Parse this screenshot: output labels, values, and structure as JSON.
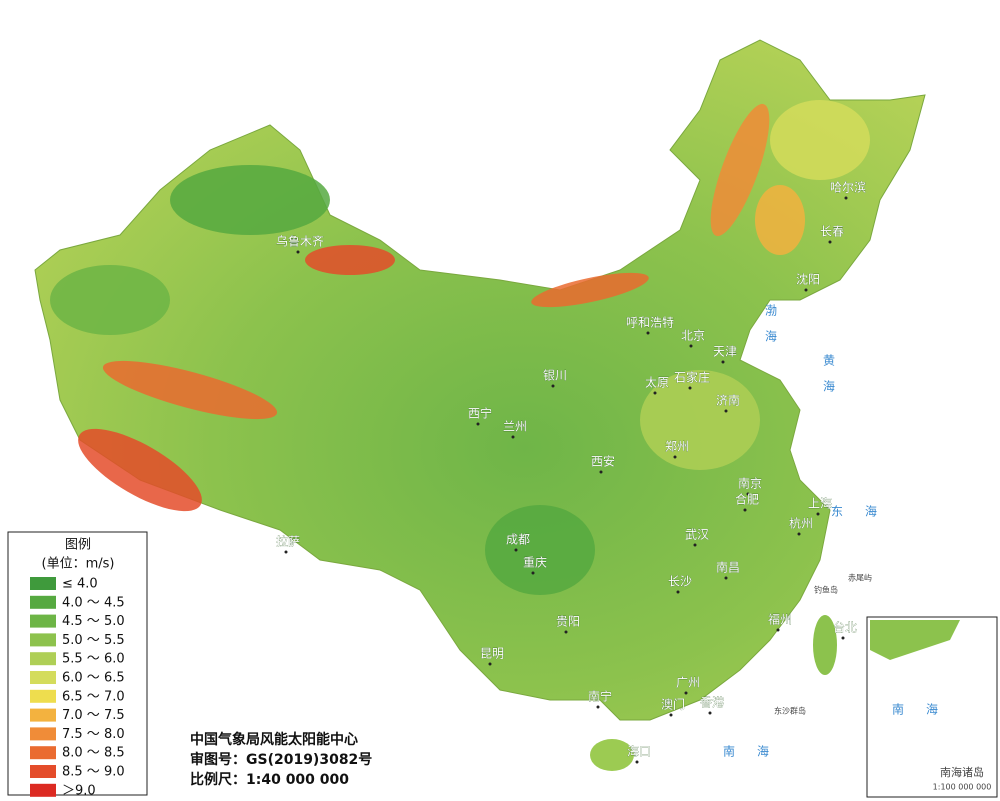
{
  "map": {
    "cities": [
      "乌鲁木齐",
      "哈尔滨",
      "长春",
      "沈阳",
      "呼和浩特",
      "北京",
      "天津",
      "石家庄",
      "太原",
      "济南",
      "银川",
      "西宁",
      "兰州",
      "西安",
      "郑州",
      "南京",
      "合肥",
      "上海",
      "杭州",
      "拉萨",
      "成都",
      "重庆",
      "武汉",
      "长沙",
      "南昌",
      "贵阳",
      "福州",
      "台北",
      "昆明",
      "南宁",
      "广州",
      "澳门",
      "香港",
      "海口"
    ],
    "seas": [
      "渤海",
      "黄海",
      "东海",
      "南海"
    ],
    "islands": [
      "钓鱼岛",
      "赤尾屿",
      "东沙群岛"
    ],
    "inset": {
      "sea": "南海",
      "title": "南海诸岛",
      "scale": "1:100 000 000"
    }
  },
  "legend": {
    "title": "图例",
    "unit": "(单位：m/s)",
    "items": [
      {
        "label": "≤ 4.0",
        "color": "#3f9a3c"
      },
      {
        "label": "4.0 ～ 4.5",
        "color": "#56a940"
      },
      {
        "label": "4.5 ～ 5.0",
        "color": "#6db546"
      },
      {
        "label": "5.0 ～ 5.5",
        "color": "#8dc24d"
      },
      {
        "label": "5.5 ～ 6.0",
        "color": "#afcf56"
      },
      {
        "label": "6.0 ～ 6.5",
        "color": "#d4dc5c"
      },
      {
        "label": "6.5 ～ 7.0",
        "color": "#eedd4e"
      },
      {
        "label": "7.0 ～ 7.5",
        "color": "#f3b23f"
      },
      {
        "label": "7.5 ～ 8.0",
        "color": "#f08c38"
      },
      {
        "label": "8.0 ～ 8.5",
        "color": "#ea6b30"
      },
      {
        "label": "8.5 ～ 9.0",
        "color": "#e44c2a"
      },
      {
        "label": "＞9.0",
        "color": "#dc2a22"
      }
    ]
  },
  "footer": {
    "org": "中国气象局风能太阳能中心",
    "approval": "审图号：GS(2019)3082号",
    "scale": "比例尺：1:40 000 000"
  }
}
